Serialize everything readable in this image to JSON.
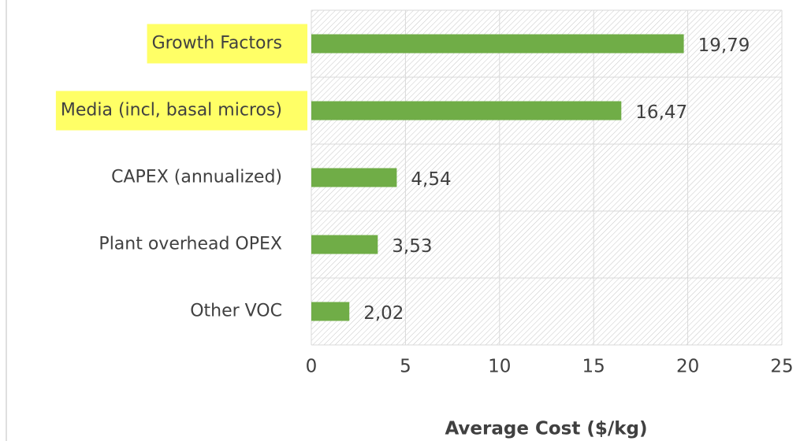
{
  "chart_data": {
    "type": "bar",
    "orientation": "horizontal",
    "categories": [
      "Growth Factors",
      "Media (incl, basal micros)",
      "CAPEX (annualized)",
      "Plant overhead OPEX",
      "Other VOC"
    ],
    "values": [
      19.79,
      16.47,
      4.54,
      3.53,
      2.02
    ],
    "value_labels": [
      "19,79",
      "16,47",
      "4,54",
      "3,53",
      "2,02"
    ],
    "color": "#70ad47",
    "highlighted_categories": [
      0,
      1
    ],
    "highlight_color": "#ffff66",
    "xlabel": "Average Cost ($/kg)",
    "xlim": [
      0,
      25
    ],
    "xticks": [
      0,
      5,
      10,
      15,
      20,
      25
    ],
    "grid": true
  }
}
